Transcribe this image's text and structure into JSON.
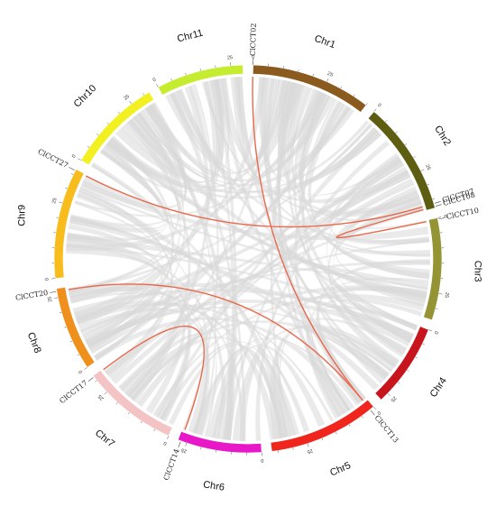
{
  "chromosomes": [
    {
      "name": "Chr1",
      "color": "#8B5A1E",
      "length": 40,
      "ticks": [
        "0",
        "25"
      ]
    },
    {
      "name": "Chr2",
      "color": "#5E5E12",
      "length": 38,
      "ticks": [
        "0",
        "25"
      ]
    },
    {
      "name": "Chr3",
      "color": "#949434",
      "length": 34,
      "ticks": [
        "0",
        "25"
      ]
    },
    {
      "name": "Chr4",
      "color": "#C8141C",
      "length": 28,
      "ticks": [
        "0",
        "25"
      ]
    },
    {
      "name": "Chr5",
      "color": "#F0261E",
      "length": 37,
      "ticks": [
        "0",
        "25"
      ]
    },
    {
      "name": "Chr6",
      "color": "#E818C8",
      "length": 28,
      "ticks": [
        "0",
        "25"
      ]
    },
    {
      "name": "Chr7",
      "color": "#F4C4C4",
      "length": 32,
      "ticks": [
        "0",
        "25"
      ]
    },
    {
      "name": "Chr8",
      "color": "#F0901C",
      "length": 28,
      "ticks": [
        "0",
        "25"
      ]
    },
    {
      "name": "Chr9",
      "color": "#F8BC1C",
      "length": 37,
      "ticks": [
        "0",
        "25"
      ]
    },
    {
      "name": "Chr10",
      "color": "#F2F020",
      "length": 32,
      "ticks": [
        "0",
        "25"
      ]
    },
    {
      "name": "Chr11",
      "color": "#C6EC30",
      "length": 29,
      "ticks": [
        "0",
        "25"
      ]
    }
  ],
  "genes": [
    {
      "name": "ClCCT02",
      "chr": "Chr1",
      "pos": 0.0
    },
    {
      "name": "ClCCT07",
      "chr": "Chr2",
      "pos": 36.5
    },
    {
      "name": "ClCCT08",
      "chr": "Chr2",
      "pos": 37.5
    },
    {
      "name": "ClCCT10",
      "chr": "Chr3",
      "pos": 0.5
    },
    {
      "name": "ClCCT13",
      "chr": "Chr5",
      "pos": 1.5
    },
    {
      "name": "ClCCT14",
      "chr": "Chr6",
      "pos": 27.0
    },
    {
      "name": "ClCCT17",
      "chr": "Chr7",
      "pos": 31.5
    },
    {
      "name": "ClCCT20",
      "chr": "Chr8",
      "pos": 27.0
    },
    {
      "name": "ClCCT27",
      "chr": "Chr9",
      "pos": 36.5
    }
  ],
  "highlight_links": [
    {
      "from": "ClCCT02",
      "to": "ClCCT13"
    },
    {
      "from": "ClCCT07",
      "to": "ClCCT27"
    },
    {
      "from": "ClCCT08",
      "to": "ClCCT10"
    },
    {
      "from": "ClCCT14",
      "to": "ClCCT17"
    },
    {
      "from": "ClCCT20",
      "to": "ClCCT13"
    }
  ],
  "colors": {
    "highlight_link": "#E8684A",
    "background_link": "#d9d9d9",
    "background": "#ffffff"
  }
}
